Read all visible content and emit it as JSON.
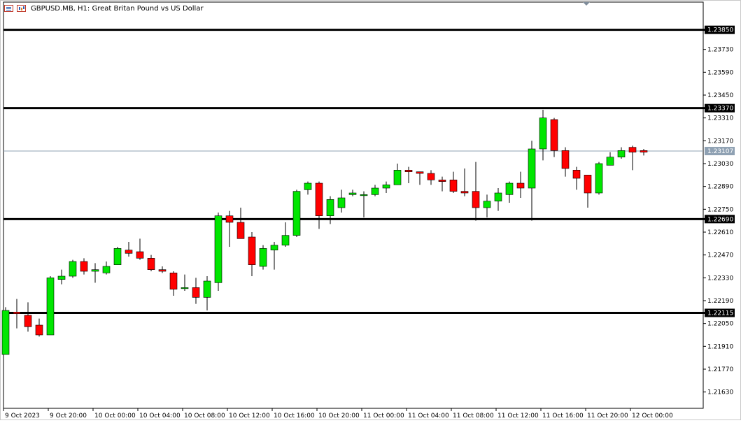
{
  "header": {
    "title": "GBPUSD.MB, H1:  Great Britan Pound vs US Dollar"
  },
  "chart_data": {
    "type": "candlestick",
    "symbol": "GBPUSD.MB",
    "timeframe": "H1",
    "ylim": [
      1.2153,
      1.2402
    ],
    "y_ticks": [
      1.2163,
      1.2177,
      1.2191,
      1.2205,
      1.2219,
      1.2233,
      1.2247,
      1.2261,
      1.2275,
      1.2289,
      1.2303,
      1.2317,
      1.2331,
      1.2345,
      1.2359,
      1.2373
    ],
    "y_tick_labels": [
      "1.21630",
      "1.21770",
      "1.21910",
      "1.22050",
      "1.22190",
      "1.22330",
      "1.22470",
      "1.22610",
      "1.22750",
      "1.22890",
      "1.23030",
      "1.23170",
      "1.23310",
      "1.23450",
      "1.23590",
      "1.23730"
    ],
    "x_labels": [
      "9 Oct 2023",
      "9 Oct 20:00",
      "10 Oct 00:00",
      "10 Oct 04:00",
      "10 Oct 08:00",
      "10 Oct 12:00",
      "10 Oct 16:00",
      "10 Oct 20:00",
      "11 Oct 00:00",
      "11 Oct 04:00",
      "11 Oct 08:00",
      "11 Oct 12:00",
      "11 Oct 16:00",
      "11 Oct 20:00",
      "12 Oct 00:00"
    ],
    "x_label_index": [
      0,
      4,
      8,
      12,
      16,
      20,
      24,
      28,
      32,
      36,
      40,
      44,
      48,
      52,
      56
    ],
    "levels": [
      {
        "value": 1.2385,
        "label": "1.23850"
      },
      {
        "value": 1.2337,
        "label": "1.23370"
      },
      {
        "value": 1.2269,
        "label": "1.22690"
      },
      {
        "value": 1.22115,
        "label": "1.22115"
      }
    ],
    "current_price": {
      "value": 1.23107,
      "label": "1.23107"
    },
    "candles": [
      {
        "o": 1.2186,
        "h": 1.2215,
        "l": 1.2186,
        "c": 1.2213
      },
      {
        "o": 1.2212,
        "h": 1.222,
        "l": 1.2202,
        "c": 1.2211
      },
      {
        "o": 1.221,
        "h": 1.2218,
        "l": 1.22,
        "c": 1.2203
      },
      {
        "o": 1.2204,
        "h": 1.2208,
        "l": 1.2197,
        "c": 1.2198
      },
      {
        "o": 1.2198,
        "h": 1.2234,
        "l": 1.2198,
        "c": 1.2233
      },
      {
        "o": 1.2232,
        "h": 1.2238,
        "l": 1.2229,
        "c": 1.2234
      },
      {
        "o": 1.2234,
        "h": 1.2244,
        "l": 1.2233,
        "c": 1.2243
      },
      {
        "o": 1.2243,
        "h": 1.2245,
        "l": 1.2235,
        "c": 1.2237
      },
      {
        "o": 1.2237,
        "h": 1.2242,
        "l": 1.223,
        "c": 1.2238
      },
      {
        "o": 1.2236,
        "h": 1.2243,
        "l": 1.2235,
        "c": 1.224
      },
      {
        "o": 1.2241,
        "h": 1.2252,
        "l": 1.2241,
        "c": 1.2251
      },
      {
        "o": 1.225,
        "h": 1.2255,
        "l": 1.2246,
        "c": 1.2248
      },
      {
        "o": 1.2249,
        "h": 1.2257,
        "l": 1.2244,
        "c": 1.2245
      },
      {
        "o": 1.2245,
        "h": 1.2247,
        "l": 1.2237,
        "c": 1.2238
      },
      {
        "o": 1.2238,
        "h": 1.224,
        "l": 1.2236,
        "c": 1.2237
      },
      {
        "o": 1.2236,
        "h": 1.2237,
        "l": 1.2222,
        "c": 1.2226
      },
      {
        "o": 1.2227,
        "h": 1.2235,
        "l": 1.2225,
        "c": 1.2227
      },
      {
        "o": 1.2227,
        "h": 1.2233,
        "l": 1.2217,
        "c": 1.2221
      },
      {
        "o": 1.2221,
        "h": 1.2234,
        "l": 1.2213,
        "c": 1.2231
      },
      {
        "o": 1.223,
        "h": 1.2273,
        "l": 1.2225,
        "c": 1.2271
      },
      {
        "o": 1.2271,
        "h": 1.2274,
        "l": 1.2252,
        "c": 1.2267
      },
      {
        "o": 1.2267,
        "h": 1.2276,
        "l": 1.2258,
        "c": 1.2257
      },
      {
        "o": 1.2258,
        "h": 1.2261,
        "l": 1.2234,
        "c": 1.2241
      },
      {
        "o": 1.224,
        "h": 1.2253,
        "l": 1.2238,
        "c": 1.2251
      },
      {
        "o": 1.225,
        "h": 1.2255,
        "l": 1.2238,
        "c": 1.2253
      },
      {
        "o": 1.2253,
        "h": 1.2267,
        "l": 1.2252,
        "c": 1.2259
      },
      {
        "o": 1.2259,
        "h": 1.2287,
        "l": 1.2258,
        "c": 1.2286
      },
      {
        "o": 1.2287,
        "h": 1.2292,
        "l": 1.2284,
        "c": 1.2291
      },
      {
        "o": 1.2291,
        "h": 1.2292,
        "l": 1.2263,
        "c": 1.2271
      },
      {
        "o": 1.2271,
        "h": 1.2283,
        "l": 1.2266,
        "c": 1.2281
      },
      {
        "o": 1.2276,
        "h": 1.2287,
        "l": 1.2273,
        "c": 1.2282
      },
      {
        "o": 1.2284,
        "h": 1.2287,
        "l": 1.2283,
        "c": 1.2285
      },
      {
        "o": 1.2284,
        "h": 1.2286,
        "l": 1.227,
        "c": 1.2284
      },
      {
        "o": 1.2284,
        "h": 1.229,
        "l": 1.2283,
        "c": 1.2288
      },
      {
        "o": 1.2288,
        "h": 1.2292,
        "l": 1.2285,
        "c": 1.229
      },
      {
        "o": 1.229,
        "h": 1.2303,
        "l": 1.229,
        "c": 1.2299
      },
      {
        "o": 1.2299,
        "h": 1.2301,
        "l": 1.2291,
        "c": 1.2298
      },
      {
        "o": 1.2298,
        "h": 1.2298,
        "l": 1.229,
        "c": 1.2297
      },
      {
        "o": 1.2297,
        "h": 1.2299,
        "l": 1.229,
        "c": 1.2293
      },
      {
        "o": 1.2293,
        "h": 1.2295,
        "l": 1.2286,
        "c": 1.2292
      },
      {
        "o": 1.2293,
        "h": 1.2298,
        "l": 1.2285,
        "c": 1.2286
      },
      {
        "o": 1.2286,
        "h": 1.23,
        "l": 1.2283,
        "c": 1.2285
      },
      {
        "o": 1.2286,
        "h": 1.2304,
        "l": 1.2268,
        "c": 1.2276
      },
      {
        "o": 1.2276,
        "h": 1.2284,
        "l": 1.227,
        "c": 1.228
      },
      {
        "o": 1.228,
        "h": 1.2288,
        "l": 1.2274,
        "c": 1.2285
      },
      {
        "o": 1.2284,
        "h": 1.2292,
        "l": 1.2279,
        "c": 1.2291
      },
      {
        "o": 1.2291,
        "h": 1.2298,
        "l": 1.2282,
        "c": 1.2288
      },
      {
        "o": 1.2288,
        "h": 1.2317,
        "l": 1.2268,
        "c": 1.2312
      },
      {
        "o": 1.2312,
        "h": 1.2336,
        "l": 1.2305,
        "c": 1.2331
      },
      {
        "o": 1.233,
        "h": 1.2331,
        "l": 1.2307,
        "c": 1.2311
      },
      {
        "o": 1.2311,
        "h": 1.2313,
        "l": 1.2295,
        "c": 1.23
      },
      {
        "o": 1.2299,
        "h": 1.2301,
        "l": 1.2287,
        "c": 1.2294
      },
      {
        "o": 1.2296,
        "h": 1.2296,
        "l": 1.2276,
        "c": 1.2285
      },
      {
        "o": 1.2285,
        "h": 1.2304,
        "l": 1.2284,
        "c": 1.2303
      },
      {
        "o": 1.2302,
        "h": 1.231,
        "l": 1.2302,
        "c": 1.2307
      },
      {
        "o": 1.2307,
        "h": 1.2313,
        "l": 1.2306,
        "c": 1.2311
      },
      {
        "o": 1.2313,
        "h": 1.2314,
        "l": 1.2299,
        "c": 1.231
      },
      {
        "o": 1.2311,
        "h": 1.2312,
        "l": 1.2308,
        "c": 1.231
      }
    ]
  }
}
